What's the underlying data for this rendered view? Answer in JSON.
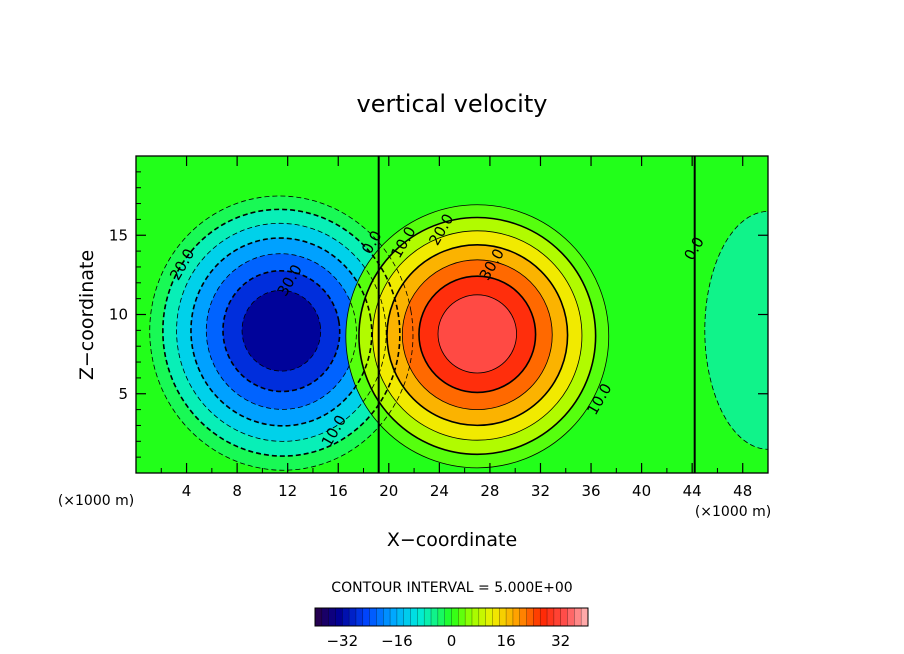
{
  "chart_data": {
    "type": "heatmap",
    "subtype": "filled-contour",
    "title": "vertical velocity",
    "xlabel": "X−coordinate",
    "ylabel": "Z−coordinate",
    "xunit": "(×1000 m)",
    "yunit": "(×1000 m)",
    "xlim": [
      0,
      50
    ],
    "ylim": [
      0,
      20
    ],
    "xticks": [
      4,
      8,
      12,
      16,
      20,
      24,
      28,
      32,
      36,
      40,
      44,
      48
    ],
    "xtick_labels": [
      "4",
      "8",
      "12",
      "16",
      "20",
      "24",
      "28",
      "32",
      "36",
      "40",
      "44",
      "48"
    ],
    "yticks": [
      5,
      10,
      15
    ],
    "ytick_labels": [
      "5",
      "10",
      "15"
    ],
    "contour_interval_text": "CONTOUR INTERVAL = 5.000E+00",
    "contour_interval": 5,
    "field_extrema": [
      {
        "kind": "min",
        "x": 11.5,
        "z": 8.5,
        "value": -37
      },
      {
        "kind": "max",
        "x": 27,
        "z": 8.5,
        "value": 37
      }
    ],
    "contour_labels": [
      {
        "text": "20.0",
        "x": 4,
        "z": 13,
        "value": -20
      },
      {
        "text": "30.0",
        "x": 12.5,
        "z": 12,
        "value": -30
      },
      {
        "text": "10.0",
        "x": 16,
        "z": 2.5,
        "value": -10
      },
      {
        "text": "0.0",
        "x": 19,
        "z": 14.4,
        "value": 0
      },
      {
        "text": "10.0",
        "x": 21.5,
        "z": 14.4,
        "value": 10
      },
      {
        "text": "20.0",
        "x": 24.5,
        "z": 15.2,
        "value": 20
      },
      {
        "text": "30.0",
        "x": 28.5,
        "z": 13,
        "value": 30
      },
      {
        "text": "10.0",
        "x": 37,
        "z": 4.5,
        "value": 10
      },
      {
        "text": "0.0",
        "x": 44.5,
        "z": 14,
        "value": 0
      }
    ],
    "colorbar": {
      "min": -40,
      "max": 40,
      "ticks": [
        -32,
        -16,
        0,
        16,
        32
      ],
      "tick_labels": [
        "−32",
        "−16",
        "0",
        "16",
        "32"
      ]
    }
  }
}
